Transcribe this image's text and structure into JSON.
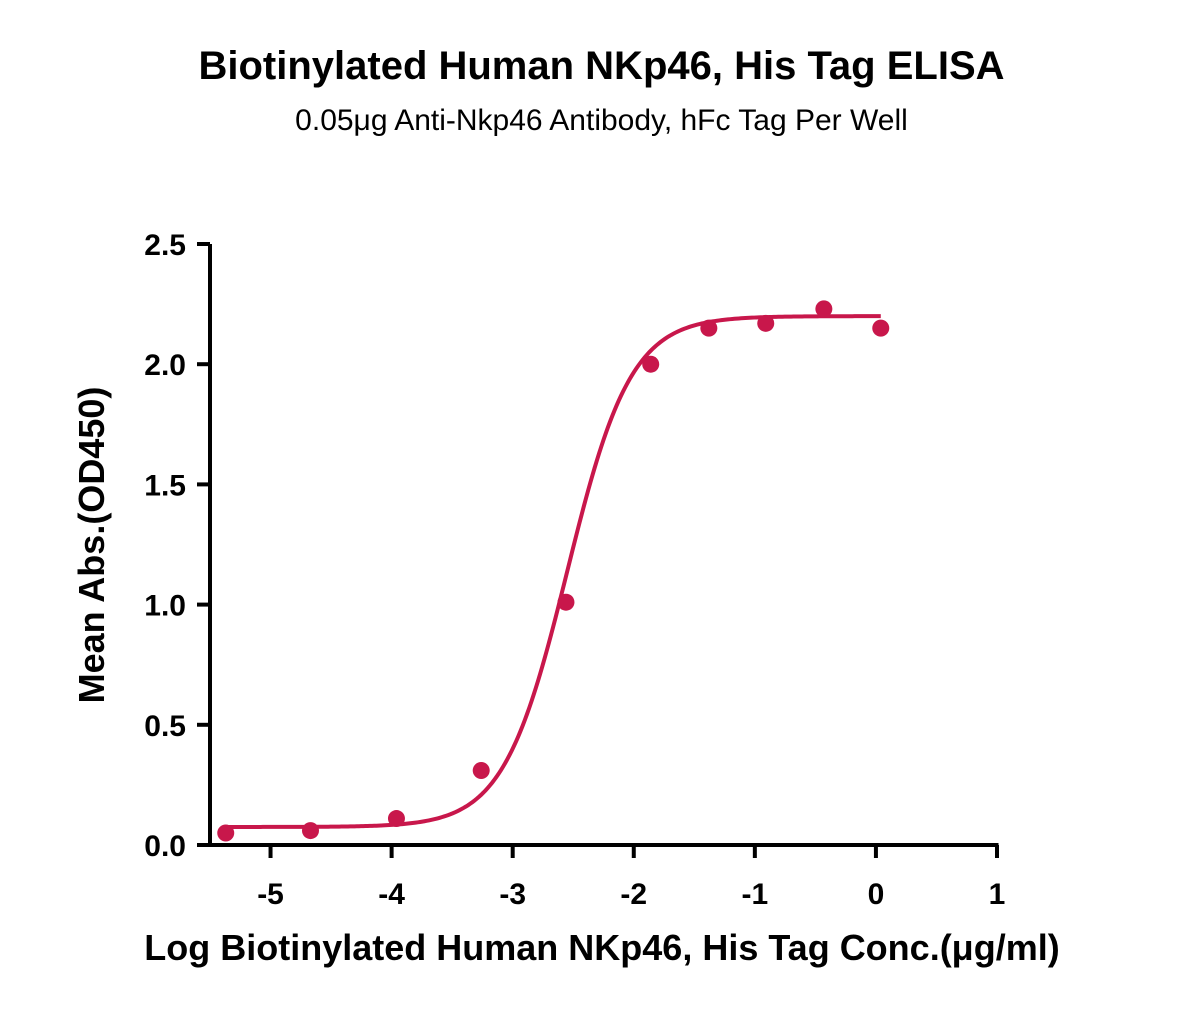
{
  "chart_data": {
    "type": "scatter",
    "title": "Biotinylated Human NKp46, His Tag ELISA",
    "subtitle": "0.05μg Anti-Nkp46 Antibody, hFc Tag Per Well",
    "xlabel": "Log Biotinylated Human NKp46, His Tag Conc.(μg/ml)",
    "ylabel": "Mean Abs.(OD450)",
    "xlim": [
      -5.5,
      1
    ],
    "ylim": [
      0,
      2.5
    ],
    "x_ticks": [
      -5,
      -4,
      -3,
      -2,
      -1,
      0,
      1
    ],
    "x_tick_labels": [
      "-5",
      "-4",
      "-3",
      "-2",
      "-1",
      "0",
      "1"
    ],
    "y_ticks": [
      0,
      0.5,
      1,
      1.5,
      2,
      2.5
    ],
    "y_tick_labels": [
      "0.0",
      "0.5",
      "1.0",
      "1.5",
      "2.0",
      "2.5"
    ],
    "series": [
      {
        "x": [
          -5.37,
          -4.67,
          -3.96,
          -3.26,
          -2.56,
          -1.86,
          -1.38,
          -0.91,
          -0.43,
          0.04
        ],
        "y": [
          0.05,
          0.06,
          0.11,
          0.31,
          1.01,
          2.0,
          2.15,
          2.17,
          2.23,
          2.15
        ]
      }
    ],
    "fit": {
      "model": "4PL",
      "bottom": 0.075,
      "top": 2.2,
      "log_ec50": -2.55,
      "hill_slope": 1.65,
      "x_range": [
        -5.37,
        0.04
      ]
    },
    "color": "#c8174b",
    "grid": false,
    "legend": "none"
  }
}
